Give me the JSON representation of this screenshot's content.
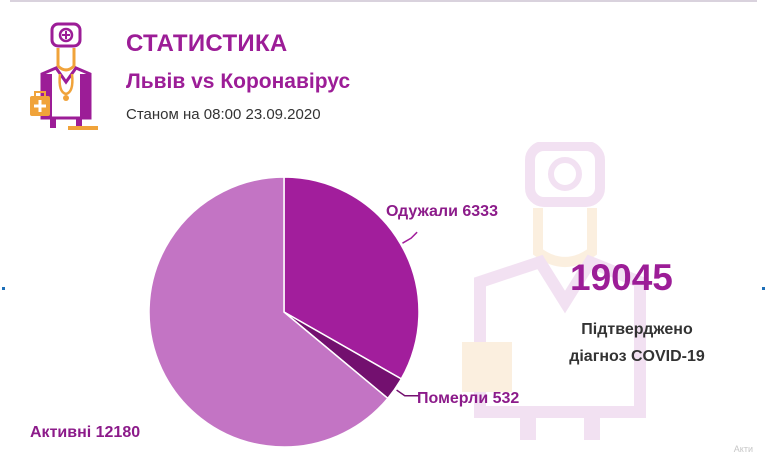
{
  "header": {
    "title": "СТАТИСТИКА",
    "subtitle": "Львів vs Коронавірус",
    "date": "Станом на 08:00 23.09.2020"
  },
  "summary": {
    "total": "19045",
    "label_line1": "Підтверджено",
    "label_line2": "діагноз COVID-19"
  },
  "pie_labels": {
    "recovered": "Одужали 6333",
    "deceased": "Померли 532",
    "active": "Активні 12180"
  },
  "corner_text": "Акти",
  "colors": {
    "brand": "#9c1d97",
    "recovered": "#a21e9c",
    "deceased": "#73106f",
    "active": "#c374c4"
  },
  "chart_data": {
    "type": "pie",
    "categories": [
      "Одужали",
      "Померли",
      "Активні"
    ],
    "values": [
      6333,
      532,
      12180
    ],
    "total": 19045,
    "start_angle_deg": 0,
    "direction": "clockwise"
  }
}
